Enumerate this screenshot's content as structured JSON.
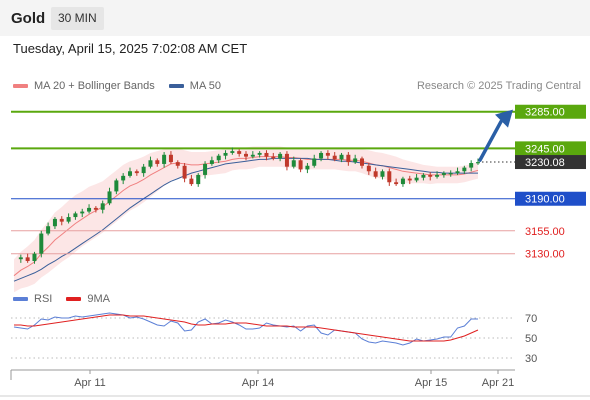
{
  "header": {
    "title": "Gold",
    "timeframe": "30 MIN"
  },
  "datetime": "Tuesday, April 15, 2025 7:02:08 AM CET",
  "legend": {
    "ma20": {
      "label": "MA 20 + Bollinger Bands",
      "color": "#f08080"
    },
    "ma50": {
      "label": "MA 50",
      "color": "#3a5f9a"
    }
  },
  "credit": "Research © 2025 Trading Central",
  "rsi_legend": {
    "rsi": {
      "label": "RSI",
      "color": "#5b7fd6"
    },
    "ma9": {
      "label": "9MA",
      "color": "#e02020"
    }
  },
  "colors": {
    "up": "#1e8a3a",
    "down": "#c0392b",
    "green_level": "#5aa80e",
    "blue_level": "#1f4fc9",
    "red_level": "#e7a0a0",
    "current": "#333333",
    "arrow": "#2a5fa6"
  },
  "chart_data": [
    {
      "type": "candlestick",
      "series": [
        {
          "name": "MA 20 + Bollinger Bands"
        },
        {
          "name": "MA 50"
        }
      ],
      "ylim": [
        3098,
        3300
      ],
      "levels": [
        {
          "label": "3285.00",
          "value": 3285,
          "kind": "resistance"
        },
        {
          "label": "3245.00",
          "value": 3245,
          "kind": "resistance"
        },
        {
          "label": "3230.08",
          "value": 3230.08,
          "kind": "current"
        },
        {
          "label": "3190.00",
          "value": 3190,
          "kind": "pivot"
        },
        {
          "label": "3155.00",
          "value": 3155,
          "kind": "support"
        },
        {
          "label": "3130.00",
          "value": 3130,
          "kind": "support"
        }
      ],
      "close": [
        3124,
        3126,
        3122,
        3130,
        3152,
        3160,
        3168,
        3165,
        3170,
        3174,
        3176,
        3180,
        3178,
        3185,
        3198,
        3210,
        3215,
        3220,
        3218,
        3225,
        3232,
        3228,
        3238,
        3230,
        3226,
        3212,
        3206,
        3216,
        3228,
        3232,
        3237,
        3240,
        3242,
        3239,
        3236,
        3238,
        3240,
        3236,
        3234,
        3239,
        3225,
        3232,
        3222,
        3226,
        3234,
        3240,
        3237,
        3233,
        3238,
        3230,
        3234,
        3226,
        3220,
        3214,
        3220,
        3208,
        3206,
        3212,
        3210,
        3213,
        3216,
        3214,
        3216,
        3218,
        3218,
        3220,
        3224,
        3229,
        3230
      ],
      "ma20": [
        3106,
        3112,
        3116,
        3121,
        3130,
        3137,
        3145,
        3151,
        3157,
        3163,
        3168,
        3173,
        3177,
        3181,
        3187,
        3193,
        3199,
        3204,
        3207,
        3211,
        3216,
        3220,
        3224,
        3228,
        3229,
        3228,
        3227,
        3227,
        3228,
        3229,
        3230,
        3231,
        3233,
        3234,
        3234,
        3235,
        3236,
        3236,
        3236,
        3236,
        3235,
        3235,
        3234,
        3233,
        3233,
        3233,
        3233,
        3233,
        3233,
        3232,
        3232,
        3231,
        3229,
        3227,
        3226,
        3224,
        3222,
        3220,
        3219,
        3218,
        3217,
        3216,
        3216,
        3216,
        3216,
        3216,
        3217,
        3219,
        3221
      ],
      "ma50": [
        3100,
        3103,
        3106,
        3109,
        3113,
        3118,
        3122,
        3127,
        3131,
        3136,
        3141,
        3146,
        3151,
        3156,
        3162,
        3168,
        3174,
        3180,
        3185,
        3190,
        3195,
        3200,
        3205,
        3209,
        3212,
        3215,
        3218,
        3220,
        3222,
        3224,
        3226,
        3228,
        3229,
        3230,
        3231,
        3232,
        3233,
        3233,
        3234,
        3234,
        3234,
        3234,
        3234,
        3234,
        3233,
        3233,
        3233,
        3232,
        3231,
        3231,
        3230,
        3229,
        3228,
        3227,
        3226,
        3225,
        3224,
        3223,
        3222,
        3221,
        3220,
        3219,
        3219,
        3218,
        3218,
        3218,
        3218,
        3218,
        3218
      ],
      "bb_width": [
        18,
        20,
        22,
        24,
        26,
        28,
        30,
        30,
        31,
        31,
        30,
        30,
        29,
        28,
        28,
        28,
        28,
        27,
        26,
        25,
        24,
        22,
        20,
        18,
        16,
        15,
        14,
        14,
        13,
        13,
        13,
        13,
        12,
        12,
        12,
        12,
        11,
        11,
        11,
        11,
        11,
        11,
        11,
        11,
        11,
        11,
        11,
        11,
        12,
        12,
        12,
        13,
        14,
        14,
        14,
        14,
        14,
        13,
        12,
        11,
        10,
        10,
        9,
        9,
        9,
        9,
        9,
        9,
        9
      ]
    },
    {
      "type": "line",
      "series": [
        {
          "name": "RSI",
          "values": [
            61,
            60,
            59,
            63,
            69,
            68,
            71,
            70,
            70,
            72,
            71,
            72,
            73,
            74,
            75,
            74,
            73,
            70,
            71,
            69,
            66,
            63,
            62,
            67,
            65,
            57,
            58,
            66,
            69,
            64,
            65,
            68,
            66,
            63,
            59,
            59,
            60,
            65,
            63,
            62,
            61,
            62,
            57,
            62,
            63,
            55,
            53,
            58,
            57,
            56,
            55,
            49,
            46,
            45,
            47,
            46,
            45,
            43,
            45,
            49,
            47,
            48,
            49,
            51,
            51,
            60,
            62,
            69,
            69
          ]
        },
        {
          "name": "9MA",
          "values": [
            63,
            63,
            62,
            62,
            63,
            64,
            65,
            66,
            67,
            68,
            69,
            70,
            71,
            72,
            73,
            73,
            73,
            72,
            72,
            72,
            71,
            70,
            69,
            68,
            67,
            66,
            64,
            63,
            63,
            64,
            64,
            64,
            65,
            65,
            65,
            64,
            63,
            62,
            62,
            62,
            62,
            61,
            61,
            61,
            61,
            60,
            59,
            58,
            57,
            56,
            55,
            54,
            53,
            52,
            51,
            50,
            49,
            48,
            47,
            47,
            47,
            47,
            47,
            47,
            48,
            50,
            52,
            55,
            58
          ]
        }
      ],
      "ylim": [
        20,
        80
      ],
      "ticks": [
        70,
        50,
        30
      ]
    }
  ],
  "x_axis": {
    "labels": [
      "Apr 11",
      "Apr 14",
      "Apr 15",
      "Apr 21"
    ]
  }
}
